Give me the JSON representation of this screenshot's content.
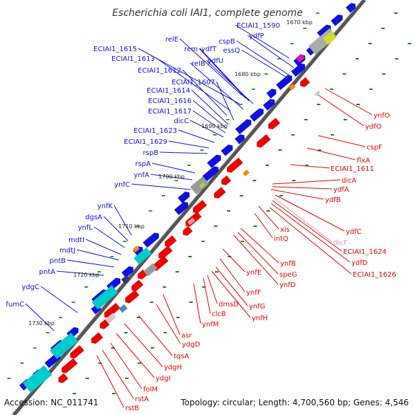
{
  "title": "Escherichia coli IAI1, complete genome",
  "footer": {
    "accession": "Accession: NC_011741",
    "topology": "Topology: circular; Length: 4,700,560 bp; Genes: 4,546"
  },
  "colors": {
    "plus": "#1010e0",
    "minus": "#ee0000",
    "pseudo": "#e889c8",
    "backbone": "#555555",
    "marks": "#118811"
  },
  "ticks": [
    "1670 kbp",
    "1680 kbp",
    "1690 kbp",
    "1700 kbp",
    "1710 kbp",
    "1720 kbp",
    "1730 kbp"
  ],
  "genes_plus": [
    "ECIAI1_1590",
    "ydfP",
    "cspB",
    "essQ",
    "relE",
    "rem",
    "ydfT",
    "ECIAI1_1615",
    "ydfU",
    "ECIAI1_1613",
    "relB",
    "ECIAI1_1612",
    "ECIAI1_1607",
    "ECIAI1_1614",
    "ECIAI1_1616",
    "ECIAI1_1617",
    "dicC",
    "ECIAI1_1623",
    "ECIAI1_1629",
    "rspB",
    "rspA",
    "ynfA",
    "ynfC",
    "ynfK",
    "dgsA",
    "ynfL",
    "mdtI",
    "mdtJ",
    "pntB",
    "pntA",
    "ydgC",
    "fumC"
  ],
  "genes_minus": [
    "ynfO",
    "ydfO",
    "cspF",
    "flxA",
    "ECIAI1_1611",
    "dicA",
    "ydfA",
    "ydfB",
    "ydfC",
    "dicF",
    "ECIAI1_1624",
    "ydfD",
    "ECIAI1_1626",
    "xis",
    "intQ",
    "ynfB",
    "speG",
    "ynfD",
    "ynfE",
    "ynfF",
    "ynfG",
    "ynfH",
    "dmsD",
    "clcB",
    "ynfM",
    "asr",
    "ydgD",
    "tqsA",
    "ydgH",
    "ydgI",
    "folM",
    "rstA",
    "rstB"
  ]
}
